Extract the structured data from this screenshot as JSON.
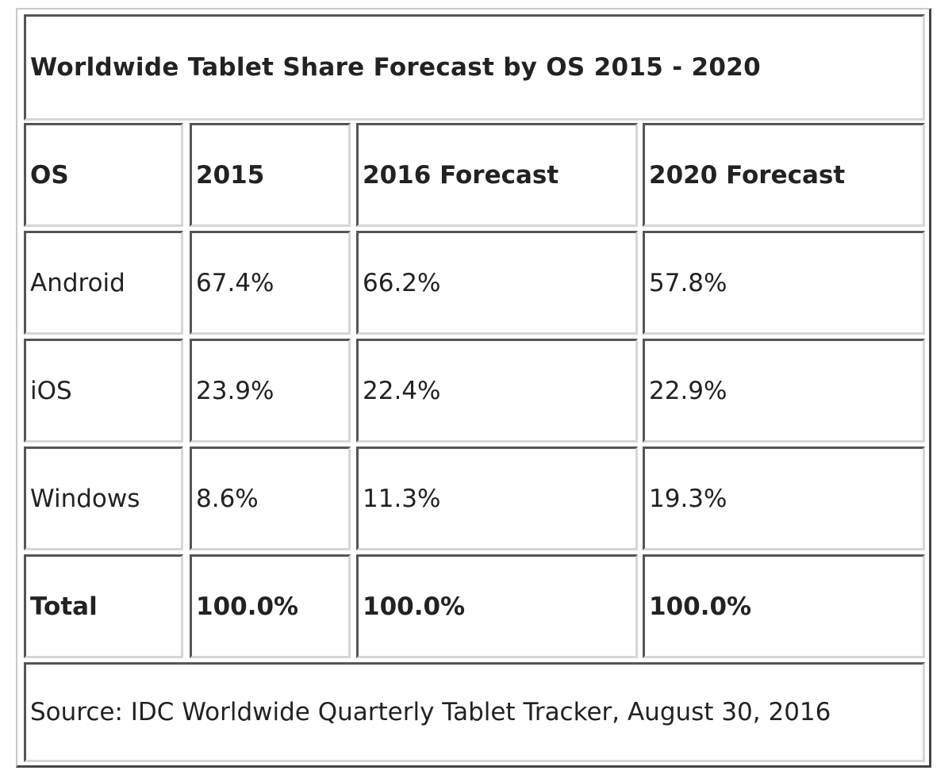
{
  "chart_data": {
    "type": "table",
    "title": "Worldwide Tablet Share Forecast by OS 2015 - 2020",
    "columns": [
      "OS",
      "2015",
      "2016 Forecast",
      "2020 Forecast"
    ],
    "rows": [
      {
        "os": "Android",
        "values": [
          "67.4%",
          "66.2%",
          "57.8%"
        ]
      },
      {
        "os": "iOS",
        "values": [
          "23.9%",
          "22.4%",
          "22.9%"
        ]
      },
      {
        "os": "Windows",
        "values": [
          "8.6%",
          "11.3%",
          "19.3%"
        ]
      }
    ],
    "total": {
      "label": "Total",
      "values": [
        "100.0%",
        "100.0%",
        "100.0%"
      ]
    },
    "source": "Source: IDC Worldwide Quarterly Tablet Tracker, August 30, 2016"
  }
}
